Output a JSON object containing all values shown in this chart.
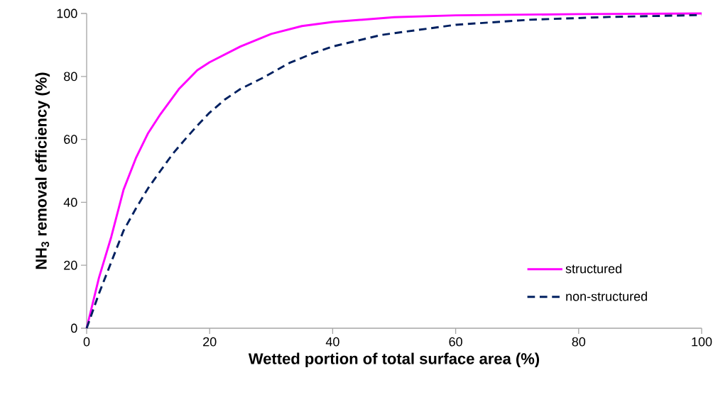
{
  "chart_data": {
    "type": "line",
    "xlabel": "Wetted portion of total surface area (%)",
    "ylabel": "NH$_{3}$ removal efficiency (%)",
    "xlim": [
      0,
      100
    ],
    "ylim": [
      0,
      100
    ],
    "xticks": [
      0,
      20,
      40,
      60,
      80,
      100
    ],
    "yticks": [
      0,
      20,
      40,
      60,
      80,
      100
    ],
    "legend": "bottom right",
    "series": [
      {
        "name": "structured",
        "color": "#ff00ff",
        "line_style": "solid",
        "x": [
          0,
          2,
          4,
          6,
          8,
          10,
          12,
          15,
          18,
          20,
          25,
          30,
          35,
          40,
          50,
          60,
          80,
          100
        ],
        "values": [
          0,
          16,
          29,
          44,
          54,
          62,
          68,
          76,
          82,
          84.5,
          89.5,
          93.5,
          96,
          97.3,
          98.8,
          99.4,
          99.8,
          100
        ]
      },
      {
        "name": "non-structured",
        "color": "#002060",
        "line_style": "dashed",
        "x": [
          0,
          2,
          4,
          6,
          8,
          10,
          12,
          14,
          16,
          18,
          20,
          22.5,
          25,
          28.6,
          33,
          37,
          40,
          48,
          60,
          72,
          85,
          100
        ],
        "values": [
          0,
          11,
          21,
          31,
          38,
          44.5,
          50,
          55.4,
          60,
          64.4,
          68.5,
          72.7,
          76,
          79.5,
          84.3,
          87.5,
          89.5,
          93.2,
          96.4,
          98,
          98.9,
          99.5
        ]
      }
    ]
  }
}
